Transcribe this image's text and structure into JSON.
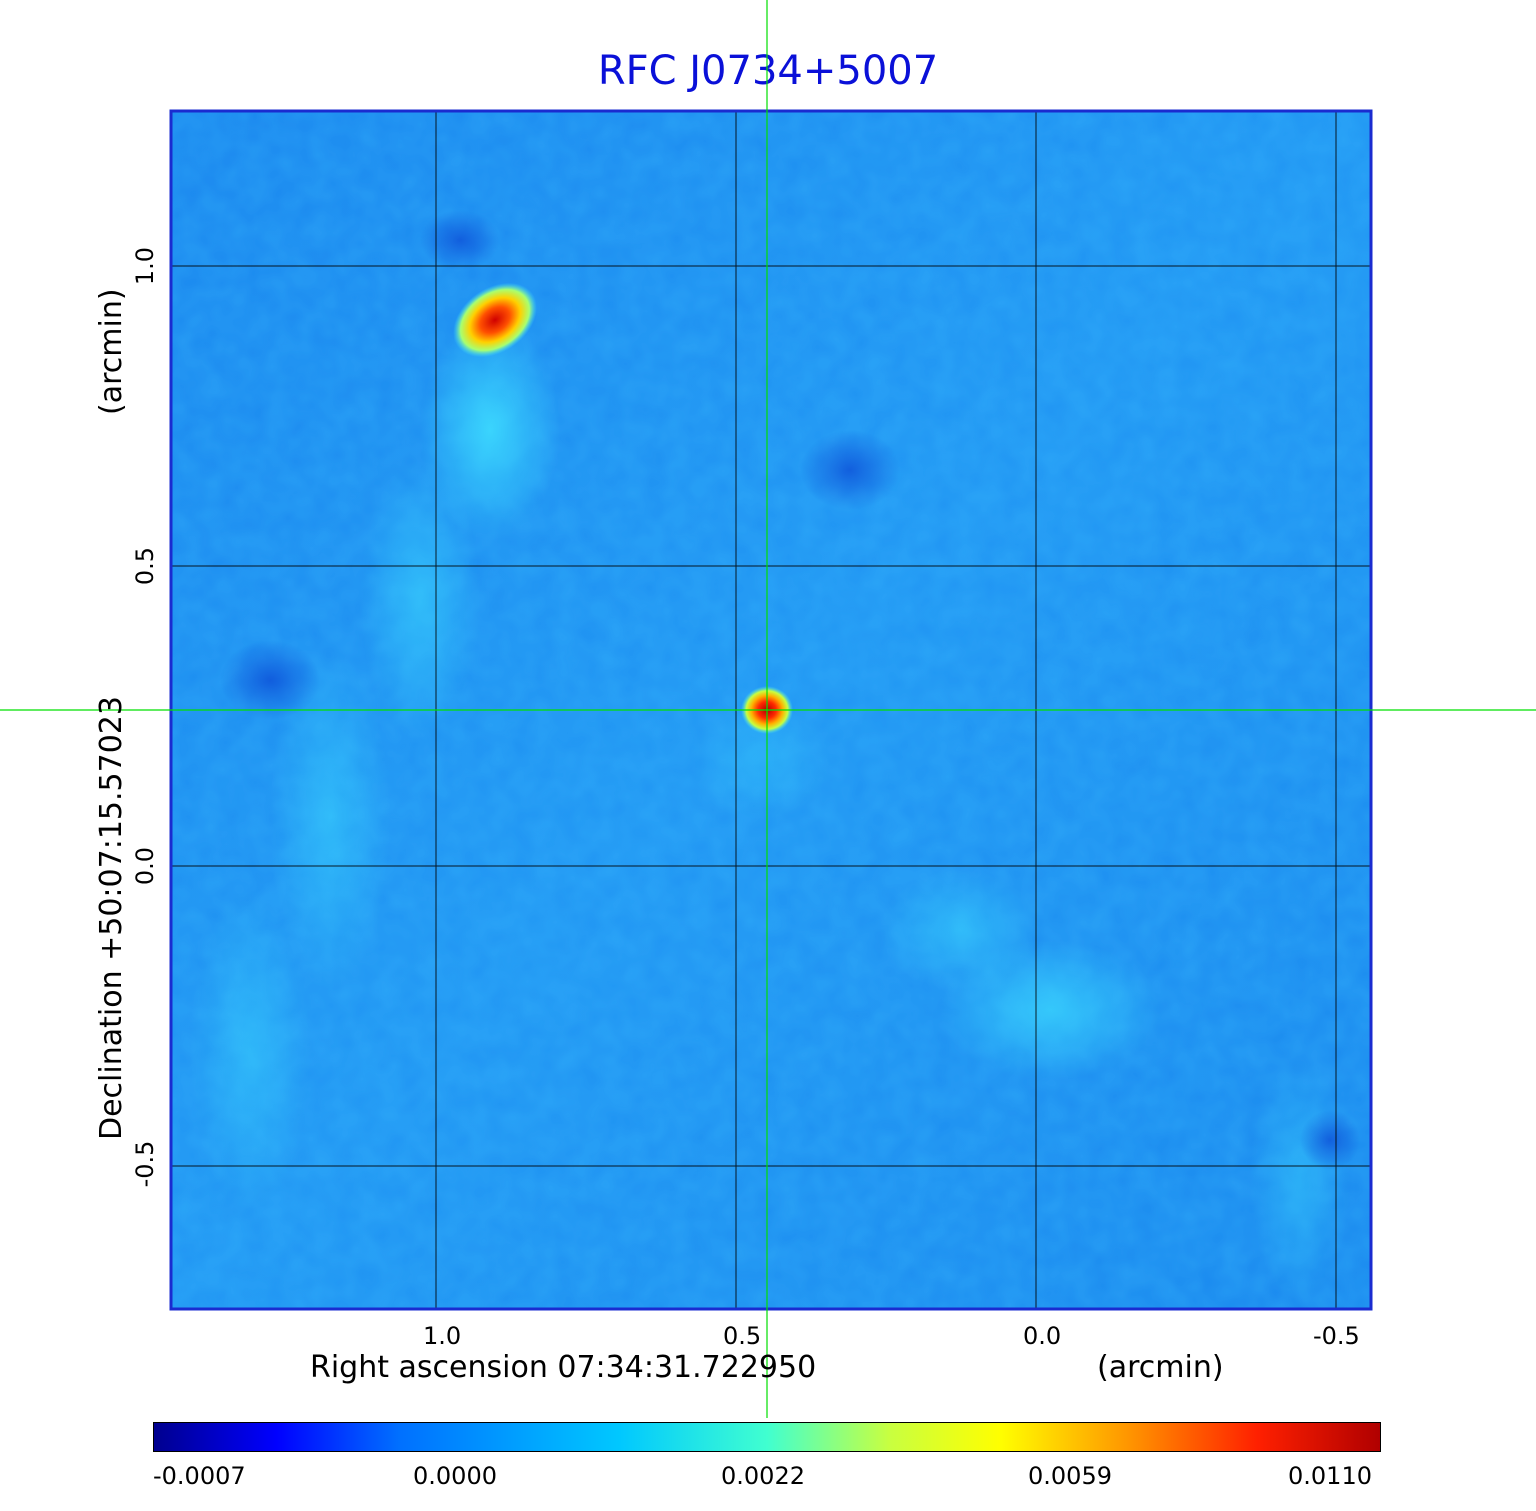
{
  "title": "RFC J0734+5007",
  "x_axis": {
    "label": "Right ascension  07:34:31.722950",
    "unit": "(arcmin)",
    "ticks": [
      "1.0",
      "0.5",
      "0.0",
      "-0.5"
    ]
  },
  "y_axis": {
    "label": "Declination  +50:07:15.57023",
    "unit": "(arcmin)",
    "ticks": [
      "1.0",
      "0.5",
      "0.0",
      "-0.5"
    ]
  },
  "colorbar": {
    "ticks": [
      "-0.0007",
      "0.0000",
      "0.0022",
      "0.0059",
      "0.0110"
    ]
  },
  "colors": {
    "title": "#0a10d8",
    "frame": "#1a2bd0",
    "crosshair": "#00e000",
    "background_map": "#1e8cf0"
  }
}
